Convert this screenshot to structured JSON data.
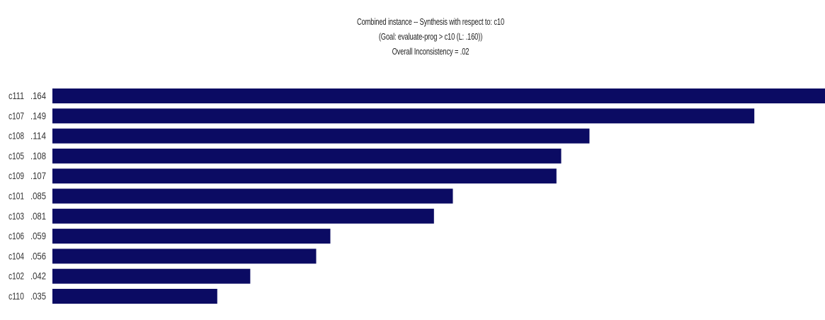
{
  "header": {
    "title": "Combined instance -- Synthesis with respect to: c10",
    "goal_line": "(Goal: evaluate-prog > c10 (L: .160))",
    "inconsistency": "Overall Inconsistency = .02"
  },
  "chart_data": {
    "type": "bar",
    "orientation": "horizontal",
    "title": "Combined instance -- Synthesis with respect to: c10",
    "subtitle": "(Goal: evaluate-prog > c10 (L: .160))",
    "annotation": "Overall Inconsistency = .02",
    "categories": [
      "c111",
      "c107",
      "c108",
      "c105",
      "c109",
      "c101",
      "c103",
      "c106",
      "c104",
      "c102",
      "c110"
    ],
    "value_labels": [
      ".164",
      ".149",
      ".114",
      ".108",
      ".107",
      ".085",
      ".081",
      ".059",
      ".056",
      ".042",
      ".035"
    ],
    "values": [
      0.164,
      0.149,
      0.114,
      0.108,
      0.107,
      0.085,
      0.081,
      0.059,
      0.056,
      0.042,
      0.035
    ],
    "xlim": [
      0,
      0.164
    ],
    "grid": false,
    "bar_color": "#0b0b63",
    "sorted": "descending"
  }
}
